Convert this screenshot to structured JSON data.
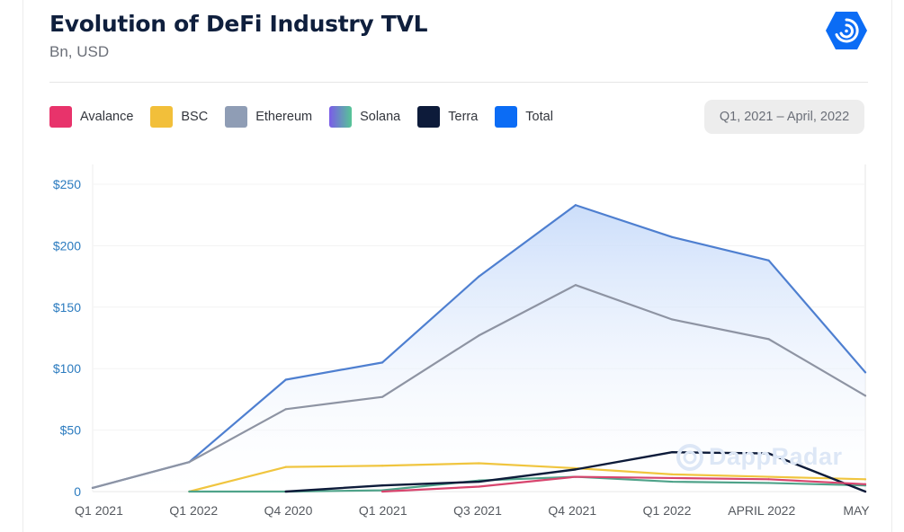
{
  "header": {
    "title": "Evolution of DeFi Industry TVL",
    "subtitle": "Bn, USD",
    "logo_icon": "dappradar-logo-icon",
    "date_range": "Q1, 2021 – April, 2022"
  },
  "legend": [
    {
      "name": "Avalance",
      "color": "#e8336b"
    },
    {
      "name": "BSC",
      "color": "#f2bf3a"
    },
    {
      "name": "Ethereum",
      "color": "#8f9db5"
    },
    {
      "name": "Solana",
      "color": "gradient",
      "gradient": [
        "#7b5ce8",
        "#56c596"
      ]
    },
    {
      "name": "Terra",
      "color": "#0d1b3a"
    },
    {
      "name": "Total",
      "color": "#0b6cf5"
    }
  ],
  "watermark": "DappRadar",
  "chart_data": {
    "type": "line",
    "title": "Evolution of DeFi Industry TVL",
    "subtitle": "Bn, USD",
    "xlabel": "",
    "ylabel": "",
    "ylim": [
      0,
      250
    ],
    "yticks": [
      0,
      50,
      100,
      150,
      200,
      250
    ],
    "ytick_labels": [
      "0",
      "$50",
      "$100",
      "$150",
      "$200",
      "$250"
    ],
    "x_tick_labels": [
      "Q1 2021",
      "Q1 2022",
      "Q4 2020",
      "Q1 2021",
      "Q3 2021",
      "Q4 2021",
      "Q1 2022",
      "APRIL 2022",
      "MAY"
    ],
    "x_points": 9,
    "grid": true,
    "legend_position": "top-left",
    "series": [
      {
        "name": "Total",
        "color": "#4e7fd0",
        "area": true,
        "values": [
          3,
          24,
          91,
          105,
          175,
          233,
          207,
          188,
          97
        ]
      },
      {
        "name": "Ethereum",
        "color": "#8e94a3",
        "values": [
          3,
          24,
          67,
          77,
          127,
          168,
          140,
          124,
          78
        ]
      },
      {
        "name": "BSC",
        "color": "#f0c53f",
        "values": [
          null,
          0,
          20,
          21,
          23,
          19,
          14,
          12,
          10
        ]
      },
      {
        "name": "Solana",
        "color": "#4fa38a",
        "values": [
          null,
          0,
          0,
          1,
          9,
          12,
          8,
          7,
          5
        ]
      },
      {
        "name": "Terra",
        "color": "#0d1b3a",
        "values": [
          null,
          null,
          0,
          5,
          8,
          18,
          32,
          31,
          0
        ]
      },
      {
        "name": "Avalance",
        "color": "#d8456e",
        "values": [
          null,
          null,
          null,
          0,
          4,
          12,
          11,
          10,
          6
        ]
      }
    ]
  }
}
